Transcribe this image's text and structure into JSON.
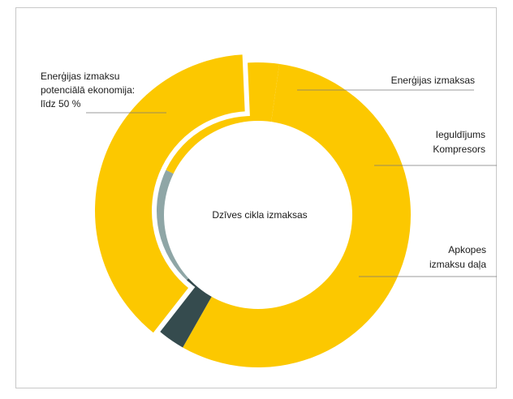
{
  "chart_data": {
    "type": "pie",
    "title": "",
    "center_label": "Dzīves cikla izmaksas",
    "slices": [
      {
        "label": "Enerģijas izmaksas",
        "value": 56,
        "color": "#FCC800"
      },
      {
        "label": "Ieguldījums Kompresors",
        "value": 5,
        "color": "#354B4E"
      },
      {
        "label": "Apkopes izmaksu daļa",
        "value": 19,
        "color": "#8FA6A6"
      },
      {
        "label": "Enerģijas izmaksas",
        "value": 20,
        "color": "#FCC800"
      }
    ],
    "outer_arc": {
      "label": "Enerģijas izmaksu potenciālā ekonomija: līdz 50 %",
      "value": 50,
      "color": "#FCC800"
    }
  },
  "labels": {
    "savings": [
      "Enerģijas izmaksu",
      "potenciālā ekonomija:",
      "līdz 50 %"
    ],
    "energy": "Enerģijas izmaksas",
    "investment": [
      "Ieguldījums",
      "Kompresors"
    ],
    "maintenance": [
      "Apkopes",
      "izmaksu daļa"
    ]
  }
}
